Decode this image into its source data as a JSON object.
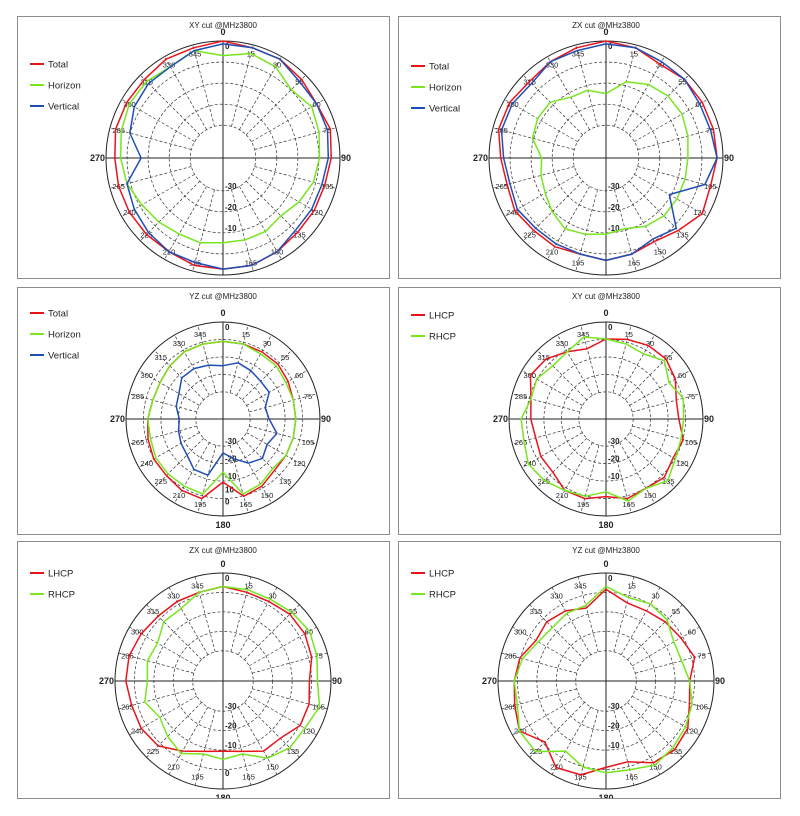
{
  "chart_data": [
    {
      "type": "polar-line",
      "title": "XY cut @MHz3800",
      "angle_labels": [
        "0",
        "15",
        "30",
        "55",
        "60",
        "75",
        "90",
        "105",
        "120",
        "135",
        "150",
        "165",
        "180",
        "195",
        "210",
        "225",
        "240",
        "265",
        "270",
        "285",
        "300",
        "315",
        "330",
        "345"
      ],
      "radial_labels": [
        "0",
        "-10",
        "-20",
        "-30"
      ],
      "series": [
        {
          "name": "Total",
          "color": "#e8141c",
          "r": [
            0,
            -1,
            -1,
            -2,
            -3,
            -2,
            -3,
            -4,
            -4,
            -4,
            -3,
            -2,
            -2,
            -2,
            -3,
            -3,
            -3,
            -3,
            -3,
            -2,
            -2,
            -2,
            -1,
            -1
          ]
        },
        {
          "name": "Horizon",
          "color": "#78e61e",
          "r": [
            -5,
            -3,
            -4,
            -7,
            -5,
            -6,
            -7,
            -8,
            -10,
            -12,
            -11,
            -11,
            -11,
            -10,
            -10,
            -9,
            -8,
            -6,
            -5,
            -4,
            -3,
            -3,
            -4,
            -2
          ]
        },
        {
          "name": "Vertical",
          "color": "#1f4fb4",
          "r": [
            -1,
            -1,
            -1,
            -3,
            -3,
            -3,
            -4,
            -5,
            -5,
            -5,
            -3,
            -2,
            -2,
            -3,
            -3,
            -4,
            -5,
            -6,
            -12,
            -7,
            -5,
            -4,
            -4,
            -2
          ]
        }
      ]
    },
    {
      "type": "polar-line",
      "title": "ZX cut @MHz3800",
      "angle_labels": [
        "0",
        "15",
        "30",
        "55",
        "60",
        "75",
        "90",
        "105",
        "120",
        "135",
        "150",
        "165",
        "180",
        "195",
        "210",
        "225",
        "240",
        "265",
        "270",
        "285",
        "300",
        "315",
        "330",
        "345"
      ],
      "radial_labels": [
        "0",
        "-10",
        "-20",
        "-30"
      ],
      "series": [
        {
          "name": "Total",
          "color": "#e8141c",
          "r": [
            0,
            -1,
            -3,
            -2,
            -2,
            -2,
            -2,
            -3,
            -2,
            -5,
            -7,
            -6,
            -5,
            -6,
            -5,
            -5,
            -4,
            -5,
            -4,
            -2,
            -2,
            -3,
            -2,
            -1
          ]
        },
        {
          "name": "Horizon",
          "color": "#78e61e",
          "r": [
            -18,
            -13,
            -11,
            -10,
            -10,
            -11,
            -12,
            -12,
            -12,
            -12,
            -13,
            -15,
            -14,
            -13,
            -12,
            -14,
            -16,
            -17,
            -18,
            -14,
            -13,
            -13,
            -16,
            -16
          ]
        },
        {
          "name": "Vertical",
          "color": "#1f4fb4",
          "r": [
            -1,
            -1,
            -2,
            -2,
            -3,
            -3,
            -2,
            -5,
            -15,
            -6,
            -8,
            -6,
            -5,
            -6,
            -6,
            -6,
            -5,
            -6,
            -5,
            -3,
            -3,
            -4,
            -2,
            -2
          ]
        }
      ]
    },
    {
      "type": "polar-line",
      "title": "YZ cut @MHz3800",
      "angle_labels": [
        "0",
        "15",
        "30",
        "55",
        "60",
        "75",
        "90",
        "105",
        "120",
        "135",
        "150",
        "165",
        "180",
        "195",
        "210",
        "225",
        "240",
        "265",
        "270",
        "285",
        "300",
        "315",
        "330",
        "345"
      ],
      "radial_labels": [
        "0",
        "-10",
        "-20",
        "-30",
        "10",
        "0"
      ],
      "series": [
        {
          "name": "Total",
          "color": "#e8141c",
          "r": [
            -8,
            -8,
            -8,
            -8,
            -9,
            -10,
            -10,
            -10,
            -10,
            -10,
            -8,
            -7,
            -14,
            -6,
            -6,
            -7,
            -7,
            -8,
            -9,
            -10,
            -10,
            -9,
            -8,
            -8
          ]
        },
        {
          "name": "Horizon",
          "color": "#78e61e",
          "r": [
            -8,
            -8,
            -9,
            -9,
            -10,
            -10,
            -10,
            -10,
            -10,
            -11,
            -9,
            -8,
            -18,
            -8,
            -8,
            -8,
            -8,
            -9,
            -9,
            -10,
            -10,
            -9,
            -8,
            -8
          ]
        },
        {
          "name": "Vertical",
          "color": "#1f4fb4",
          "r": [
            -18,
            -16,
            -17,
            -18,
            -18,
            -22,
            -21,
            -17,
            -19,
            -17,
            -19,
            -23,
            -26,
            -16,
            -16,
            -19,
            -20,
            -21,
            -22,
            -20,
            -19,
            -16,
            -16,
            -17
          ]
        }
      ]
    },
    {
      "type": "polar-line",
      "title": "XY cut @MHz3800",
      "angle_labels": [
        "0",
        "15",
        "30",
        "55",
        "60",
        "75",
        "90",
        "105",
        "120",
        "135",
        "150",
        "165",
        "180",
        "195",
        "210",
        "225",
        "240",
        "265",
        "270",
        "285",
        "300",
        "315",
        "330",
        "345"
      ],
      "radial_labels": [
        "0",
        "-30",
        "-20",
        "-10"
      ],
      "series": [
        {
          "name": "LHCP",
          "color": "#e8141c",
          "r": [
            -7,
            -6,
            -5,
            -5,
            -7,
            -10,
            -10,
            -7,
            -8,
            -6,
            -7,
            -6,
            -8,
            -6,
            -6,
            -9,
            -9,
            -10,
            -9,
            -8,
            -4,
            -5,
            -8,
            -10
          ]
        },
        {
          "name": "RHCP",
          "color": "#78e61e",
          "r": [
            -7,
            -8,
            -9,
            -6,
            -10,
            -7,
            -8,
            -8,
            -7,
            -4,
            -7,
            -5,
            -10,
            -7,
            -6,
            -4,
            -3,
            -5,
            -5,
            -8,
            -7,
            -9,
            -8,
            -5
          ]
        }
      ]
    },
    {
      "type": "polar-line",
      "title": "ZX cut @MHz3800",
      "angle_labels": [
        "0",
        "15",
        "30",
        "55",
        "60",
        "75",
        "90",
        "105",
        "120",
        "135",
        "150",
        "165",
        "180",
        "195",
        "210",
        "225",
        "240",
        "265",
        "270",
        "285",
        "300",
        "315",
        "330",
        "345"
      ],
      "radial_labels": [
        "0",
        "-30",
        "-20",
        "-10",
        "0"
      ],
      "series": [
        {
          "name": "LHCP",
          "color": "#e8141c",
          "r": [
            -5,
            -6,
            -6,
            -5,
            -5,
            -6,
            -8,
            -7,
            -7,
            -10,
            -10,
            -13,
            -14,
            -13,
            -10,
            -6,
            -5,
            -5,
            -4,
            -4,
            -5,
            -6,
            -6,
            -6
          ]
        },
        {
          "name": "RHCP",
          "color": "#78e61e",
          "r": [
            -5,
            -5,
            -5,
            -4,
            -3,
            -4,
            -5,
            -3,
            -5,
            -5,
            -7,
            -12,
            -11,
            -12,
            -9,
            -11,
            -13,
            -10,
            -12,
            -11,
            -12,
            -9,
            -9,
            -6
          ]
        }
      ]
    },
    {
      "type": "polar-line",
      "title": "YZ cut @MHz3800",
      "angle_labels": [
        "0",
        "15",
        "30",
        "55",
        "60",
        "75",
        "90",
        "105",
        "120",
        "135",
        "150",
        "165",
        "180",
        "195",
        "210",
        "225",
        "240",
        "265",
        "270",
        "285",
        "300",
        "315",
        "330",
        "345"
      ],
      "radial_labels": [
        "0",
        "-20",
        "-30",
        "-10"
      ],
      "series": [
        {
          "name": "LHCP",
          "color": "#e8141c",
          "r": [
            -6,
            -10,
            -10,
            -9,
            -8,
            -6,
            -9,
            -8,
            -5,
            -4,
            -5,
            -9,
            -8,
            -4,
            -3,
            -8,
            -3,
            -5,
            -6,
            -7,
            -10,
            -9,
            -10,
            -12
          ]
        },
        {
          "name": "RHCP",
          "color": "#78e61e",
          "r": [
            -5,
            -8,
            -7,
            -8,
            -11,
            -11,
            -9,
            -7,
            -6,
            -5,
            -4,
            -6,
            -6,
            -7,
            -10,
            -3,
            -3,
            -6,
            -6,
            -8,
            -11,
            -12,
            -11,
            -11
          ]
        }
      ]
    }
  ]
}
